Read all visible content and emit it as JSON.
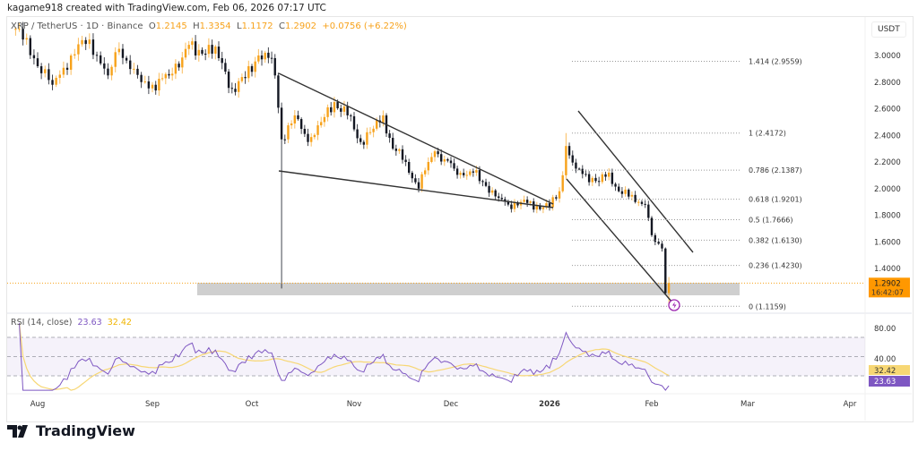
{
  "credit": "kagame918 created with TradingView.com, Feb 06, 2026 07:17 UTC",
  "legend": {
    "symbol": "XRP / TetherUS · 1D · Binance",
    "o_label": "O",
    "o": "1.2145",
    "h_label": "H",
    "h": "1.3354",
    "l_label": "L",
    "l": "1.1172",
    "c_label": "C",
    "c": "1.2902",
    "change": "+0.0756 (+6.22%)"
  },
  "price_axis": {
    "unit": "USDT",
    "ticks": [
      "3.0000",
      "2.8000",
      "2.6000",
      "2.4000",
      "2.2000",
      "2.0000",
      "1.8000",
      "1.6000",
      "1.4000"
    ]
  },
  "last_price": {
    "value": "1.2902",
    "countdown": "16:42:07",
    "color": "#ff9800"
  },
  "rsi": {
    "label": "RSI (14, close)",
    "value": "23.63",
    "ma": "32.42",
    "ticks": [
      "80.00",
      "40.00"
    ],
    "line_color": "#7e57c2",
    "ma_color": "#f7d774",
    "levels": [
      70,
      50,
      30
    ]
  },
  "time_axis": [
    "Aug",
    "Sep",
    "Oct",
    "Nov",
    "Dec",
    "2026",
    "Feb",
    "Mar",
    "Apr"
  ],
  "fib": [
    {
      "label": "1.414 (2.9559)",
      "price": 2.9559
    },
    {
      "label": "1 (2.4172)",
      "price": 2.4172
    },
    {
      "label": "0.786 (2.1387)",
      "price": 2.1387
    },
    {
      "label": "0.618 (1.9201)",
      "price": 1.9201
    },
    {
      "label": "0.5 (1.7666)",
      "price": 1.7666
    },
    {
      "label": "0.382 (1.6130)",
      "price": 1.613
    },
    {
      "label": "0.236 (1.4230)",
      "price": 1.423
    },
    {
      "label": "0 (1.1159)",
      "price": 1.1159
    }
  ],
  "colors": {
    "up": "#f7a21b",
    "down": "#131722",
    "zone": "#cfcfcf",
    "alert": "#9c27b0"
  },
  "logo": "TradingView",
  "chart_data": {
    "type": "candlestick",
    "title": "XRP / TetherUS · 1D · Binance",
    "ylim": [
      1.05,
      3.25
    ],
    "grid": false,
    "keypoints_close": [
      [
        "2025-07-26",
        3.2
      ],
      [
        "2025-08-05",
        2.78
      ],
      [
        "2025-08-10",
        3.0
      ],
      [
        "2025-08-15",
        3.12
      ],
      [
        "2025-08-20",
        2.85
      ],
      [
        "2025-08-23",
        3.05
      ],
      [
        "2025-08-27",
        2.9
      ],
      [
        "2025-08-29",
        2.8
      ],
      [
        "2025-09-01",
        2.78
      ],
      [
        "2025-09-06",
        2.85
      ],
      [
        "2025-09-12",
        3.08
      ],
      [
        "2025-09-14",
        3.0
      ],
      [
        "2025-09-18",
        3.08
      ],
      [
        "2025-09-21",
        2.98
      ],
      [
        "2025-09-25",
        2.75
      ],
      [
        "2025-09-29",
        2.83
      ],
      [
        "2025-10-03",
        3.0
      ],
      [
        "2025-10-07",
        2.98
      ],
      [
        "2025-10-08",
        2.85
      ],
      [
        "2025-10-10",
        2.37
      ],
      [
        "2025-10-14",
        2.55
      ],
      [
        "2025-10-18",
        2.35
      ],
      [
        "2025-10-22",
        2.5
      ],
      [
        "2025-10-26",
        2.65
      ],
      [
        "2025-10-30",
        2.55
      ],
      [
        "2025-11-03",
        2.35
      ],
      [
        "2025-11-07",
        2.45
      ],
      [
        "2025-11-10",
        2.55
      ],
      [
        "2025-11-13",
        2.3
      ],
      [
        "2025-11-17",
        2.2
      ],
      [
        "2025-11-21",
        2.0
      ],
      [
        "2025-11-24",
        2.2
      ],
      [
        "2025-11-26",
        2.28
      ],
      [
        "2025-11-29",
        2.22
      ],
      [
        "2025-12-02",
        2.15
      ],
      [
        "2025-12-05",
        2.1
      ],
      [
        "2025-12-08",
        2.12
      ],
      [
        "2025-12-12",
        2.02
      ],
      [
        "2025-12-16",
        1.93
      ],
      [
        "2025-12-19",
        1.88
      ],
      [
        "2025-12-23",
        1.9
      ],
      [
        "2025-12-28",
        1.87
      ],
      [
        "2026-01-01",
        1.86
      ],
      [
        "2026-01-04",
        1.98
      ],
      [
        "2026-01-05",
        2.1
      ],
      [
        "2026-01-06",
        2.32
      ],
      [
        "2026-01-07",
        2.25
      ],
      [
        "2026-01-09",
        2.15
      ],
      [
        "2026-01-14",
        2.08
      ],
      [
        "2026-01-16",
        2.05
      ],
      [
        "2026-01-19",
        2.12
      ],
      [
        "2026-01-22",
        1.98
      ],
      [
        "2026-01-25",
        1.94
      ],
      [
        "2026-01-28",
        1.9
      ],
      [
        "2026-01-30",
        1.88
      ],
      [
        "2026-01-31",
        1.78
      ],
      [
        "2026-02-01",
        1.65
      ],
      [
        "2026-02-02",
        1.6
      ],
      [
        "2026-02-04",
        1.55
      ],
      [
        "2026-02-05",
        1.2145
      ],
      [
        "2026-02-06",
        1.2902
      ]
    ],
    "last_candle": {
      "date": "2026-02-06",
      "open": 1.2145,
      "high": 1.3354,
      "low": 1.1172,
      "close": 1.2902
    },
    "notable_lows": [
      [
        "2025-10-10",
        1.25
      ]
    ],
    "notable_highs": [
      [
        "2026-01-06",
        2.4172
      ]
    ]
  }
}
